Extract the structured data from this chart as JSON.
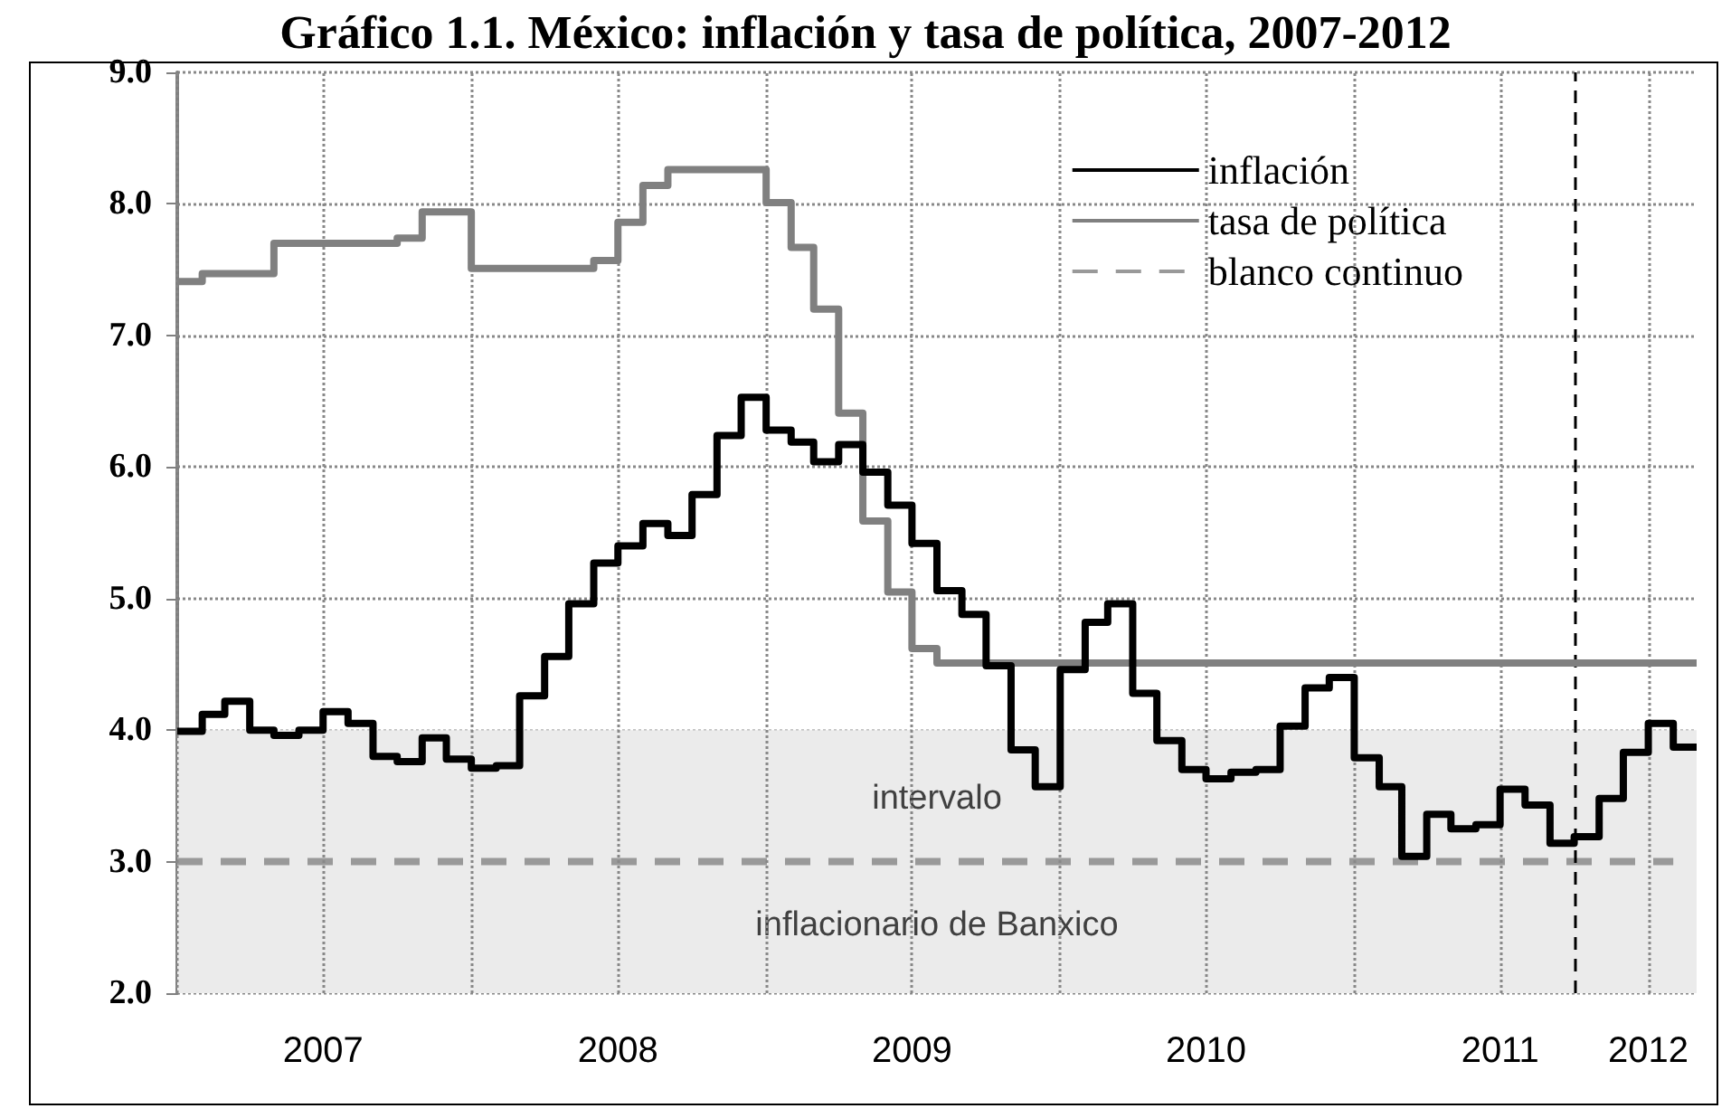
{
  "chart_data": {
    "type": "step",
    "title": "Gráfico 1.1. México: inflación y tasa de política, 2007-2012",
    "x": [
      "2007-01",
      "2007-02",
      "2007-03",
      "2007-04",
      "2007-05",
      "2007-06",
      "2007-07",
      "2007-08",
      "2007-09",
      "2007-10",
      "2007-11",
      "2007-12",
      "2008-01",
      "2008-02",
      "2008-03",
      "2008-04",
      "2008-05",
      "2008-06",
      "2008-07",
      "2008-08",
      "2008-09",
      "2008-10",
      "2008-11",
      "2008-12",
      "2009-01",
      "2009-02",
      "2009-03",
      "2009-04",
      "2009-05",
      "2009-06",
      "2009-07",
      "2009-08",
      "2009-09",
      "2009-10",
      "2009-11",
      "2009-12",
      "2010-01",
      "2010-02",
      "2010-03",
      "2010-04",
      "2010-05",
      "2010-06",
      "2010-07",
      "2010-08",
      "2010-09",
      "2010-10",
      "2010-11",
      "2010-12",
      "2011-01",
      "2011-02",
      "2011-03",
      "2011-04",
      "2011-05",
      "2011-06",
      "2011-07",
      "2011-08",
      "2011-09",
      "2011-10",
      "2011-11",
      "2011-12",
      "2012-01",
      "2012-02",
      "2012-03"
    ],
    "series": [
      {
        "name": "inflación",
        "color": "#000000",
        "values": [
          3.99,
          4.12,
          4.22,
          4.0,
          3.96,
          4.0,
          4.14,
          4.05,
          3.8,
          3.76,
          3.94,
          3.78,
          3.71,
          3.73,
          4.26,
          4.56,
          4.96,
          5.27,
          5.4,
          5.57,
          5.48,
          5.79,
          6.24,
          6.53,
          6.28,
          6.19,
          6.04,
          6.17,
          5.96,
          5.71,
          5.42,
          5.06,
          4.88,
          4.49,
          3.85,
          3.57,
          4.46,
          4.82,
          4.96,
          4.28,
          3.92,
          3.7,
          3.63,
          3.68,
          3.7,
          4.03,
          4.32,
          4.4,
          3.79,
          3.57,
          3.04,
          3.36,
          3.25,
          3.28,
          3.55,
          3.43,
          3.14,
          3.19,
          3.48,
          3.83,
          4.05,
          3.87,
          3.87
        ]
      },
      {
        "name": "tasa de política",
        "color": "#808080",
        "values": [
          7.41,
          7.47,
          7.47,
          7.47,
          7.7,
          7.7,
          7.7,
          7.7,
          7.7,
          7.74,
          7.94,
          7.94,
          7.51,
          7.51,
          7.51,
          7.51,
          7.51,
          7.57,
          7.86,
          8.14,
          8.26,
          8.26,
          8.26,
          8.26,
          8.01,
          7.67,
          7.2,
          6.41,
          5.59,
          5.05,
          4.62,
          4.51,
          4.51,
          4.51,
          4.51,
          4.51,
          4.51,
          4.51,
          4.51,
          4.51,
          4.51,
          4.51,
          4.51,
          4.51,
          4.51,
          4.51,
          4.51,
          4.51,
          4.51,
          4.51,
          4.51,
          4.51,
          4.51,
          4.51,
          4.51,
          4.51,
          4.51,
          4.51,
          4.51,
          4.51,
          4.51,
          4.51,
          4.51
        ]
      },
      {
        "name": "blanco continuo",
        "type": "line",
        "color": "#999999",
        "line_style": "dashed",
        "x": [
          "2007-01",
          "2012-02"
        ],
        "values": [
          3.0,
          3.0
        ]
      }
    ],
    "xlim": [
      "2007-01",
      "2012-03"
    ],
    "xticks": [
      {
        "value": "2007-01",
        "label": null
      },
      {
        "value": "2007-07",
        "label": "2007"
      },
      {
        "value": "2008-01",
        "label": null
      },
      {
        "value": "2008-07",
        "label": "2008"
      },
      {
        "value": "2009-01",
        "label": null
      },
      {
        "value": "2009-07",
        "label": "2009"
      },
      {
        "value": "2010-01",
        "label": null
      },
      {
        "value": "2010-07",
        "label": "2010"
      },
      {
        "value": "2011-01",
        "label": null
      },
      {
        "value": "2011-07",
        "label": "2011"
      },
      {
        "value": "2012-01",
        "label": "2012"
      }
    ],
    "ylim": [
      2.0,
      9.0
    ],
    "yticks": [
      {
        "value": 2,
        "label": "2.0"
      },
      {
        "value": 3,
        "label": "3.0"
      },
      {
        "value": 4,
        "label": "4.0"
      },
      {
        "value": 5,
        "label": "5.0"
      },
      {
        "value": 6,
        "label": "6.0"
      },
      {
        "value": 7,
        "label": "7.0"
      },
      {
        "value": 8,
        "label": "8.0"
      },
      {
        "value": 9,
        "label": "9.0"
      }
    ],
    "bands": [
      {
        "axis": "y",
        "from": 2.0,
        "to": 4.0,
        "label": "intervalo\ninflacionario de Banxico",
        "color": "#ebebeb"
      }
    ],
    "ref_lines": [
      {
        "axis": "x",
        "value": "2011-10",
        "color": "#000000",
        "line_style": "dashed"
      }
    ],
    "grid": true,
    "legend": "top right",
    "line_style": "solid",
    "marker": "none"
  }
}
